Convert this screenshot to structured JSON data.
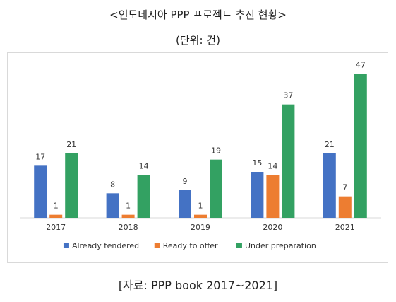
{
  "title": "<인도네시아 PPP 프로젝트 추진 현황>",
  "subtitle": "(단위: 건)",
  "source": "[자료: PPP book 2017~2021]",
  "colors": {
    "Already tendered": "#4472c4",
    "Ready to offer": "#ed7d31",
    "Under preparation": "#33a162",
    "axis": "#d9d9d9"
  },
  "chart_data": {
    "type": "bar",
    "categories": [
      "2017",
      "2018",
      "2019",
      "2020",
      "2021"
    ],
    "series": [
      {
        "name": "Already tendered",
        "values": [
          17,
          8,
          9,
          15,
          21
        ]
      },
      {
        "name": "Ready to offer",
        "values": [
          1,
          1,
          1,
          14,
          7
        ]
      },
      {
        "name": "Under preparation",
        "values": [
          21,
          14,
          19,
          37,
          47
        ]
      }
    ],
    "ylim": [
      0,
      48
    ],
    "grid": false,
    "legend": "bottom",
    "data_labels": true
  }
}
